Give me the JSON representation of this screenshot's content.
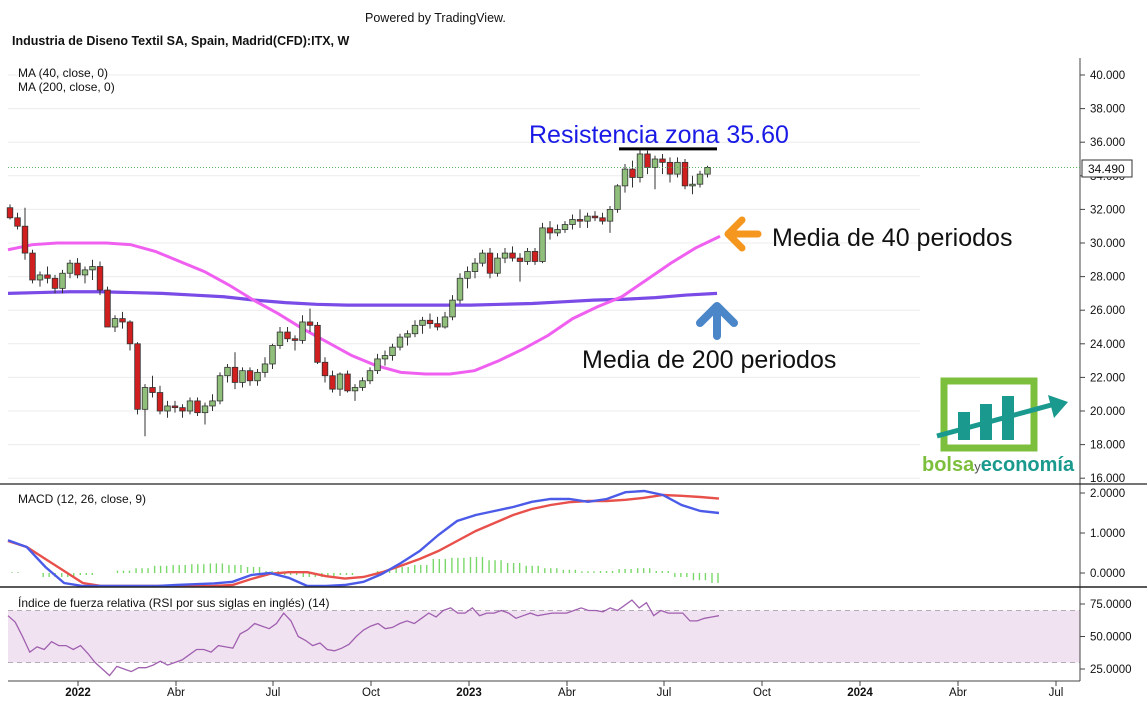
{
  "powered_by": "Powered by TradingView.",
  "instrument_title": "Industria de Diseno Textil SA, Spain, Madrid(CFD):ITX, W",
  "indicators": {
    "ma40_label": "MA (40, close, 0)",
    "ma200_label": "MA (200, close, 0)",
    "macd_label": "MACD (12, 26, close, 9)",
    "rsi_label": "Índice de fuerza relativa (RSI por sus siglas en inglés) (14)"
  },
  "annotations": {
    "resistance": "Resistencia zona 35.60",
    "ma40_note": "Media de 40 periodos",
    "ma200_note": "Media de 200 periodos"
  },
  "logo": {
    "text_bolsa": "bolsa",
    "text_y": "y",
    "text_economia": "economía"
  },
  "colors": {
    "up_candle": "#8fbf7a",
    "down_candle": "#d11f1f",
    "ma40": "#f060f0",
    "ma200": "#7a4be6",
    "macd_line": "#4b5be8",
    "signal_line": "#e8504b",
    "hist": "#7ad86a",
    "rsi_line": "#a060b0",
    "rsi_band": "#f1e2f1",
    "annotation_blue": "#1a1ae6",
    "arrow_orange": "#f5961e",
    "arrow_blue": "#4a86c8",
    "logo_green": "#7cbf3c",
    "logo_teal": "#1a9a8e"
  },
  "chart_data": {
    "type": "candlestick",
    "timeframe": "W",
    "last_price": "34.490",
    "resistance": 35.6,
    "price_axis": {
      "ylim": [
        16,
        41
      ],
      "ticks": [
        "40.000",
        "38.000",
        "36.000",
        "34.000",
        "32.000",
        "30.000",
        "28.000",
        "26.000",
        "24.000",
        "22.000",
        "20.000",
        "18.000",
        "16.000"
      ]
    },
    "macd_axis": {
      "ticks": [
        "2.0000",
        "1.0000",
        "0.0000"
      ]
    },
    "rsi_axis": {
      "ticks": [
        "75.0000",
        "50.0000",
        "25.0000"
      ],
      "overbought": 70,
      "oversold": 30
    },
    "time_axis": [
      "2022",
      "Abr",
      "Jul",
      "Oct",
      "2023",
      "Abr",
      "Jul",
      "Oct",
      "2024",
      "Abr",
      "Jul"
    ],
    "candles": [
      [
        32.1,
        32.3,
        31.4,
        31.5
      ],
      [
        31.5,
        31.8,
        30.8,
        31.0
      ],
      [
        31.0,
        32.1,
        29.0,
        29.4
      ],
      [
        29.4,
        29.6,
        27.6,
        27.8
      ],
      [
        27.8,
        28.3,
        27.4,
        28.1
      ],
      [
        28.1,
        28.6,
        27.6,
        27.9
      ],
      [
        27.9,
        28.1,
        27.0,
        27.3
      ],
      [
        27.3,
        28.4,
        27.0,
        28.2
      ],
      [
        28.2,
        29.0,
        27.9,
        28.8
      ],
      [
        28.8,
        29.1,
        27.9,
        28.1
      ],
      [
        28.1,
        28.6,
        27.6,
        28.4
      ],
      [
        28.4,
        29.0,
        27.8,
        28.6
      ],
      [
        28.6,
        28.9,
        26.9,
        27.2
      ],
      [
        27.2,
        27.4,
        25.0,
        25.0
      ],
      [
        25.0,
        25.7,
        24.7,
        25.5
      ],
      [
        25.5,
        25.9,
        24.9,
        25.3
      ],
      [
        25.3,
        25.4,
        23.6,
        24.0
      ],
      [
        24.0,
        24.1,
        19.8,
        20.1
      ],
      [
        20.1,
        21.6,
        18.5,
        21.4
      ],
      [
        21.4,
        22.1,
        20.8,
        21.1
      ],
      [
        21.1,
        21.5,
        19.8,
        20.0
      ],
      [
        20.0,
        20.6,
        19.6,
        20.3
      ],
      [
        20.3,
        20.6,
        19.9,
        20.2
      ],
      [
        20.2,
        20.4,
        19.6,
        20.0
      ],
      [
        20.0,
        20.8,
        19.8,
        20.6
      ],
      [
        20.6,
        20.8,
        19.7,
        19.9
      ],
      [
        19.9,
        20.5,
        19.2,
        20.3
      ],
      [
        20.3,
        21.0,
        20.0,
        20.6
      ],
      [
        20.6,
        22.3,
        20.4,
        22.1
      ],
      [
        22.1,
        22.8,
        21.7,
        22.6
      ],
      [
        22.6,
        23.5,
        21.3,
        21.7
      ],
      [
        21.7,
        22.6,
        21.4,
        22.4
      ],
      [
        22.4,
        22.6,
        21.5,
        21.8
      ],
      [
        21.8,
        22.5,
        21.5,
        22.3
      ],
      [
        22.3,
        23.2,
        22.0,
        22.8
      ],
      [
        22.8,
        24.0,
        22.5,
        23.9
      ],
      [
        23.9,
        25.0,
        23.7,
        24.7
      ],
      [
        24.7,
        25.0,
        24.1,
        24.3
      ],
      [
        24.3,
        24.5,
        23.6,
        24.2
      ],
      [
        24.2,
        25.7,
        24.0,
        25.3
      ],
      [
        25.3,
        26.1,
        24.7,
        25.1
      ],
      [
        25.1,
        25.3,
        22.8,
        22.9
      ],
      [
        22.9,
        23.2,
        21.7,
        22.1
      ],
      [
        22.1,
        22.4,
        21.1,
        21.3
      ],
      [
        21.3,
        22.3,
        20.9,
        22.2
      ],
      [
        22.2,
        22.4,
        21.1,
        21.2
      ],
      [
        21.2,
        21.6,
        20.6,
        21.4
      ],
      [
        21.4,
        22.0,
        21.2,
        21.8
      ],
      [
        21.8,
        22.6,
        21.6,
        22.4
      ],
      [
        22.4,
        23.4,
        22.2,
        23.1
      ],
      [
        23.1,
        23.6,
        22.7,
        23.3
      ],
      [
        23.3,
        24.0,
        23.0,
        23.8
      ],
      [
        23.8,
        24.6,
        23.6,
        24.4
      ],
      [
        24.4,
        24.8,
        23.9,
        24.6
      ],
      [
        24.6,
        25.4,
        24.4,
        25.1
      ],
      [
        25.1,
        25.6,
        24.6,
        25.4
      ],
      [
        25.4,
        25.8,
        24.9,
        25.2
      ],
      [
        25.2,
        25.6,
        24.8,
        25.0
      ],
      [
        25.0,
        25.9,
        24.9,
        25.6
      ],
      [
        25.6,
        26.9,
        25.4,
        26.6
      ],
      [
        26.6,
        28.2,
        26.4,
        27.9
      ],
      [
        27.9,
        28.6,
        27.3,
        28.3
      ],
      [
        28.3,
        29.1,
        27.9,
        28.8
      ],
      [
        28.8,
        29.6,
        28.6,
        29.4
      ],
      [
        29.4,
        29.7,
        27.9,
        28.2
      ],
      [
        28.2,
        29.4,
        28.0,
        29.1
      ],
      [
        29.1,
        29.7,
        28.8,
        29.4
      ],
      [
        29.4,
        29.8,
        28.9,
        29.1
      ],
      [
        29.1,
        29.4,
        27.7,
        28.9
      ],
      [
        28.9,
        29.7,
        28.7,
        29.5
      ],
      [
        29.5,
        29.7,
        28.7,
        28.9
      ],
      [
        28.9,
        31.2,
        28.8,
        30.9
      ],
      [
        30.9,
        31.3,
        30.2,
        30.6
      ],
      [
        30.6,
        31.1,
        30.4,
        30.8
      ],
      [
        30.8,
        31.3,
        30.6,
        31.1
      ],
      [
        31.1,
        31.7,
        30.8,
        31.4
      ],
      [
        31.4,
        32.0,
        30.9,
        31.3
      ],
      [
        31.3,
        31.8,
        30.9,
        31.6
      ],
      [
        31.6,
        31.9,
        31.3,
        31.5
      ],
      [
        31.5,
        31.8,
        31.1,
        31.3
      ],
      [
        31.3,
        32.2,
        30.6,
        32.0
      ],
      [
        32.0,
        33.5,
        31.8,
        33.4
      ],
      [
        33.4,
        34.7,
        33.0,
        34.4
      ],
      [
        34.4,
        34.9,
        33.3,
        33.9
      ],
      [
        33.9,
        35.6,
        33.6,
        35.3
      ],
      [
        35.3,
        35.5,
        34.1,
        34.5
      ],
      [
        34.5,
        35.2,
        33.2,
        35.0
      ],
      [
        35.0,
        35.3,
        34.1,
        34.8
      ],
      [
        34.8,
        35.1,
        33.6,
        34.1
      ],
      [
        34.1,
        35.1,
        33.9,
        34.8
      ],
      [
        34.8,
        35.0,
        33.2,
        33.4
      ],
      [
        33.4,
        34.0,
        32.9,
        33.5
      ],
      [
        33.5,
        34.3,
        33.3,
        34.1
      ],
      [
        34.1,
        34.6,
        33.9,
        34.5
      ]
    ],
    "ma40": [
      29.6,
      29.9,
      30.0,
      30.0,
      30.0,
      29.9,
      29.5,
      28.9,
      28.3,
      27.5,
      26.6,
      25.8,
      24.9,
      24.1,
      23.3,
      22.7,
      22.3,
      22.2,
      22.2,
      22.4,
      23.0,
      23.7,
      24.5,
      25.5,
      26.2,
      26.8,
      27.8,
      28.8,
      29.7,
      30.4
    ],
    "ma200": [
      27.0,
      27.05,
      27.1,
      27.1,
      27.05,
      27.0,
      26.9,
      26.8,
      26.6,
      26.45,
      26.35,
      26.3,
      26.3,
      26.3,
      26.3,
      26.3,
      26.35,
      26.4,
      26.5,
      26.6,
      26.65,
      26.75,
      26.9,
      27.0
    ],
    "macd": [
      0.82,
      0.65,
      0.15,
      -0.25,
      -0.45,
      -0.55,
      -0.5,
      -0.42,
      -0.35,
      -0.3,
      -0.28,
      -0.26,
      -0.22,
      -0.05,
      0.0,
      -0.12,
      -0.35,
      -0.35,
      -0.3,
      -0.22,
      -0.02,
      0.25,
      0.55,
      0.95,
      1.3,
      1.45,
      1.55,
      1.65,
      1.78,
      1.85,
      1.85,
      1.78,
      1.85,
      2.02,
      2.05,
      1.95,
      1.7,
      1.55,
      1.5
    ],
    "signal": [
      0.8,
      0.65,
      0.35,
      0.05,
      -0.25,
      -0.45,
      -0.58,
      -0.65,
      -0.68,
      -0.66,
      -0.6,
      -0.5,
      -0.3,
      -0.15,
      -0.02,
      0.02,
      0.02,
      -0.08,
      -0.14,
      -0.1,
      0.02,
      0.18,
      0.35,
      0.55,
      0.8,
      1.05,
      1.25,
      1.45,
      1.6,
      1.7,
      1.77,
      1.8,
      1.8,
      1.83,
      1.88,
      1.95,
      1.93,
      1.9,
      1.86
    ],
    "histogram": [
      0.02,
      0.0,
      -0.1,
      -0.1,
      -0.05,
      0.0,
      0.06,
      0.12,
      0.18,
      0.2,
      0.22,
      0.24,
      0.2,
      0.15,
      0.05,
      -0.05,
      -0.1,
      -0.1,
      -0.05,
      0.0,
      0.05,
      0.15,
      0.2,
      0.35,
      0.38,
      0.4,
      0.32,
      0.25,
      0.18,
      0.12,
      0.08,
      0.04,
      0.05,
      0.1,
      0.12,
      0.05,
      -0.1,
      -0.18,
      -0.25
    ],
    "rsi": [
      66,
      61,
      50,
      38,
      42,
      40,
      46,
      43,
      43,
      40,
      43,
      37,
      30,
      25,
      20,
      27,
      25,
      23,
      26,
      26,
      28,
      31,
      28,
      30,
      32,
      36,
      40,
      40,
      38,
      43,
      42,
      41,
      52,
      55,
      60,
      58,
      56,
      60,
      68,
      62,
      50,
      47,
      43,
      45,
      40,
      39,
      41,
      44,
      50,
      55,
      58,
      60,
      56,
      57,
      60,
      62,
      60,
      64,
      68,
      65,
      70,
      72,
      68,
      68,
      72,
      66,
      68,
      68,
      70,
      68,
      64,
      66,
      68,
      66,
      67,
      68,
      68,
      68,
      70,
      72,
      70,
      70,
      69,
      72,
      70,
      74,
      78,
      72,
      76,
      66,
      70,
      68,
      68,
      68,
      62,
      62,
      64,
      65,
      66
    ]
  }
}
